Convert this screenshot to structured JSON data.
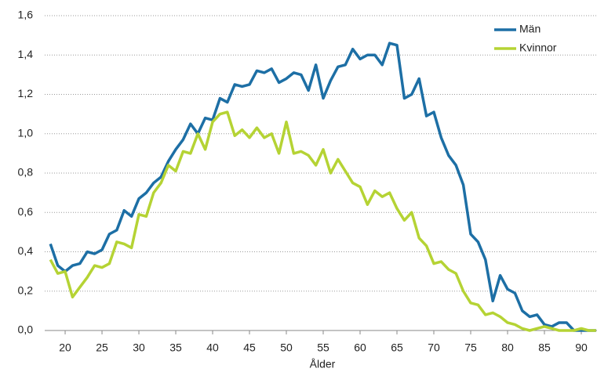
{
  "chart_data": {
    "type": "line",
    "xlabel": "Ålder",
    "x": [
      18,
      19,
      20,
      21,
      22,
      23,
      24,
      25,
      26,
      27,
      28,
      29,
      30,
      31,
      32,
      33,
      34,
      35,
      36,
      37,
      38,
      39,
      40,
      41,
      42,
      43,
      44,
      45,
      46,
      47,
      48,
      49,
      50,
      51,
      52,
      53,
      54,
      55,
      56,
      57,
      58,
      59,
      60,
      61,
      62,
      63,
      64,
      65,
      66,
      67,
      68,
      69,
      70,
      71,
      72,
      73,
      74,
      75,
      76,
      77,
      78,
      79,
      80,
      81,
      82,
      83,
      84,
      85,
      86,
      87,
      88,
      89,
      90,
      91,
      92
    ],
    "series": [
      {
        "name": "Män",
        "color": "#1d6fa5",
        "values": [
          0.44,
          0.33,
          0.3,
          0.33,
          0.34,
          0.4,
          0.39,
          0.41,
          0.49,
          0.51,
          0.61,
          0.58,
          0.67,
          0.7,
          0.75,
          0.78,
          0.86,
          0.92,
          0.97,
          1.05,
          1.0,
          1.08,
          1.07,
          1.18,
          1.16,
          1.25,
          1.24,
          1.25,
          1.32,
          1.31,
          1.33,
          1.26,
          1.28,
          1.31,
          1.3,
          1.22,
          1.35,
          1.18,
          1.27,
          1.34,
          1.35,
          1.43,
          1.38,
          1.4,
          1.4,
          1.35,
          1.46,
          1.45,
          1.18,
          1.2,
          1.28,
          1.09,
          1.11,
          0.98,
          0.89,
          0.84,
          0.74,
          0.49,
          0.45,
          0.36,
          0.15,
          0.28,
          0.21,
          0.19,
          0.1,
          0.07,
          0.08,
          0.03,
          0.02,
          0.04,
          0.04,
          0.0,
          0.0,
          0.0,
          0.0
        ]
      },
      {
        "name": "Kvinnor",
        "color": "#b5d334",
        "values": [
          0.36,
          0.29,
          0.3,
          0.17,
          0.22,
          0.27,
          0.33,
          0.32,
          0.34,
          0.45,
          0.44,
          0.42,
          0.59,
          0.58,
          0.7,
          0.75,
          0.84,
          0.81,
          0.91,
          0.9,
          1.0,
          0.92,
          1.06,
          1.1,
          1.11,
          0.99,
          1.02,
          0.98,
          1.03,
          0.98,
          1.0,
          0.9,
          1.06,
          0.9,
          0.91,
          0.89,
          0.84,
          0.92,
          0.8,
          0.87,
          0.81,
          0.75,
          0.73,
          0.64,
          0.71,
          0.68,
          0.7,
          0.62,
          0.56,
          0.6,
          0.47,
          0.43,
          0.34,
          0.35,
          0.31,
          0.29,
          0.2,
          0.14,
          0.13,
          0.08,
          0.09,
          0.07,
          0.04,
          0.03,
          0.01,
          0.0,
          0.01,
          0.02,
          0.01,
          0.0,
          0.0,
          0.0,
          0.01,
          0.0,
          0.0
        ]
      }
    ],
    "xlim": [
      17.23,
      92.13
    ],
    "xticks": [
      20,
      25,
      30,
      35,
      40,
      45,
      50,
      55,
      60,
      65,
      70,
      75,
      80,
      85,
      90
    ],
    "ylim": [
      0,
      1.6
    ],
    "yticks": [
      {
        "value": 0,
        "label": "0,0"
      },
      {
        "value": 0.2,
        "label": "0,2"
      },
      {
        "value": 0.4,
        "label": "0,4"
      },
      {
        "value": 0.6,
        "label": "0,6"
      },
      {
        "value": 0.8,
        "label": "0,8"
      },
      {
        "value": 1,
        "label": "1,0"
      },
      {
        "value": 1.2,
        "label": "1,2"
      },
      {
        "value": 1.4,
        "label": "1,4"
      },
      {
        "value": 1.6,
        "label": "1,6"
      }
    ],
    "grid": true,
    "legend": "upper right"
  }
}
